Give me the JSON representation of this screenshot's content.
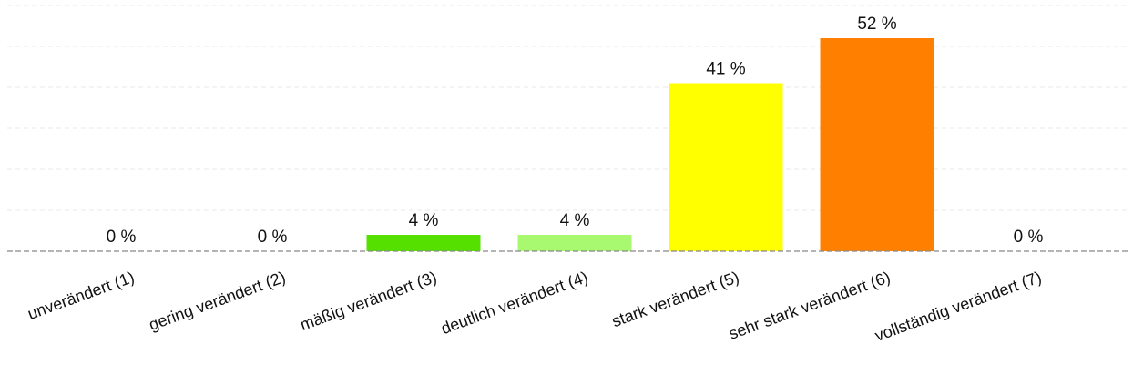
{
  "chart_data": {
    "type": "bar",
    "categories": [
      "unverändert (1)",
      "gering verändert (2)",
      "mäßig verändert (3)",
      "deutlich verändert (4)",
      "stark verändert (5)",
      "sehr stark verändert (6)",
      "vollständig verändert (7)"
    ],
    "values": [
      0,
      0,
      4,
      4,
      41,
      52,
      0
    ],
    "value_labels": [
      "0 %",
      "0 %",
      "4 %",
      "4 %",
      "41 %",
      "52 %",
      "0 %"
    ],
    "colors": [
      "#999999",
      "#999999",
      "#55e000",
      "#a8f870",
      "#ffff00",
      "#ff8000",
      "#999999"
    ],
    "unit": "%",
    "ylim": [
      0,
      60
    ],
    "grid": true,
    "legend": "none",
    "title": "",
    "xlabel": "",
    "ylabel": ""
  }
}
